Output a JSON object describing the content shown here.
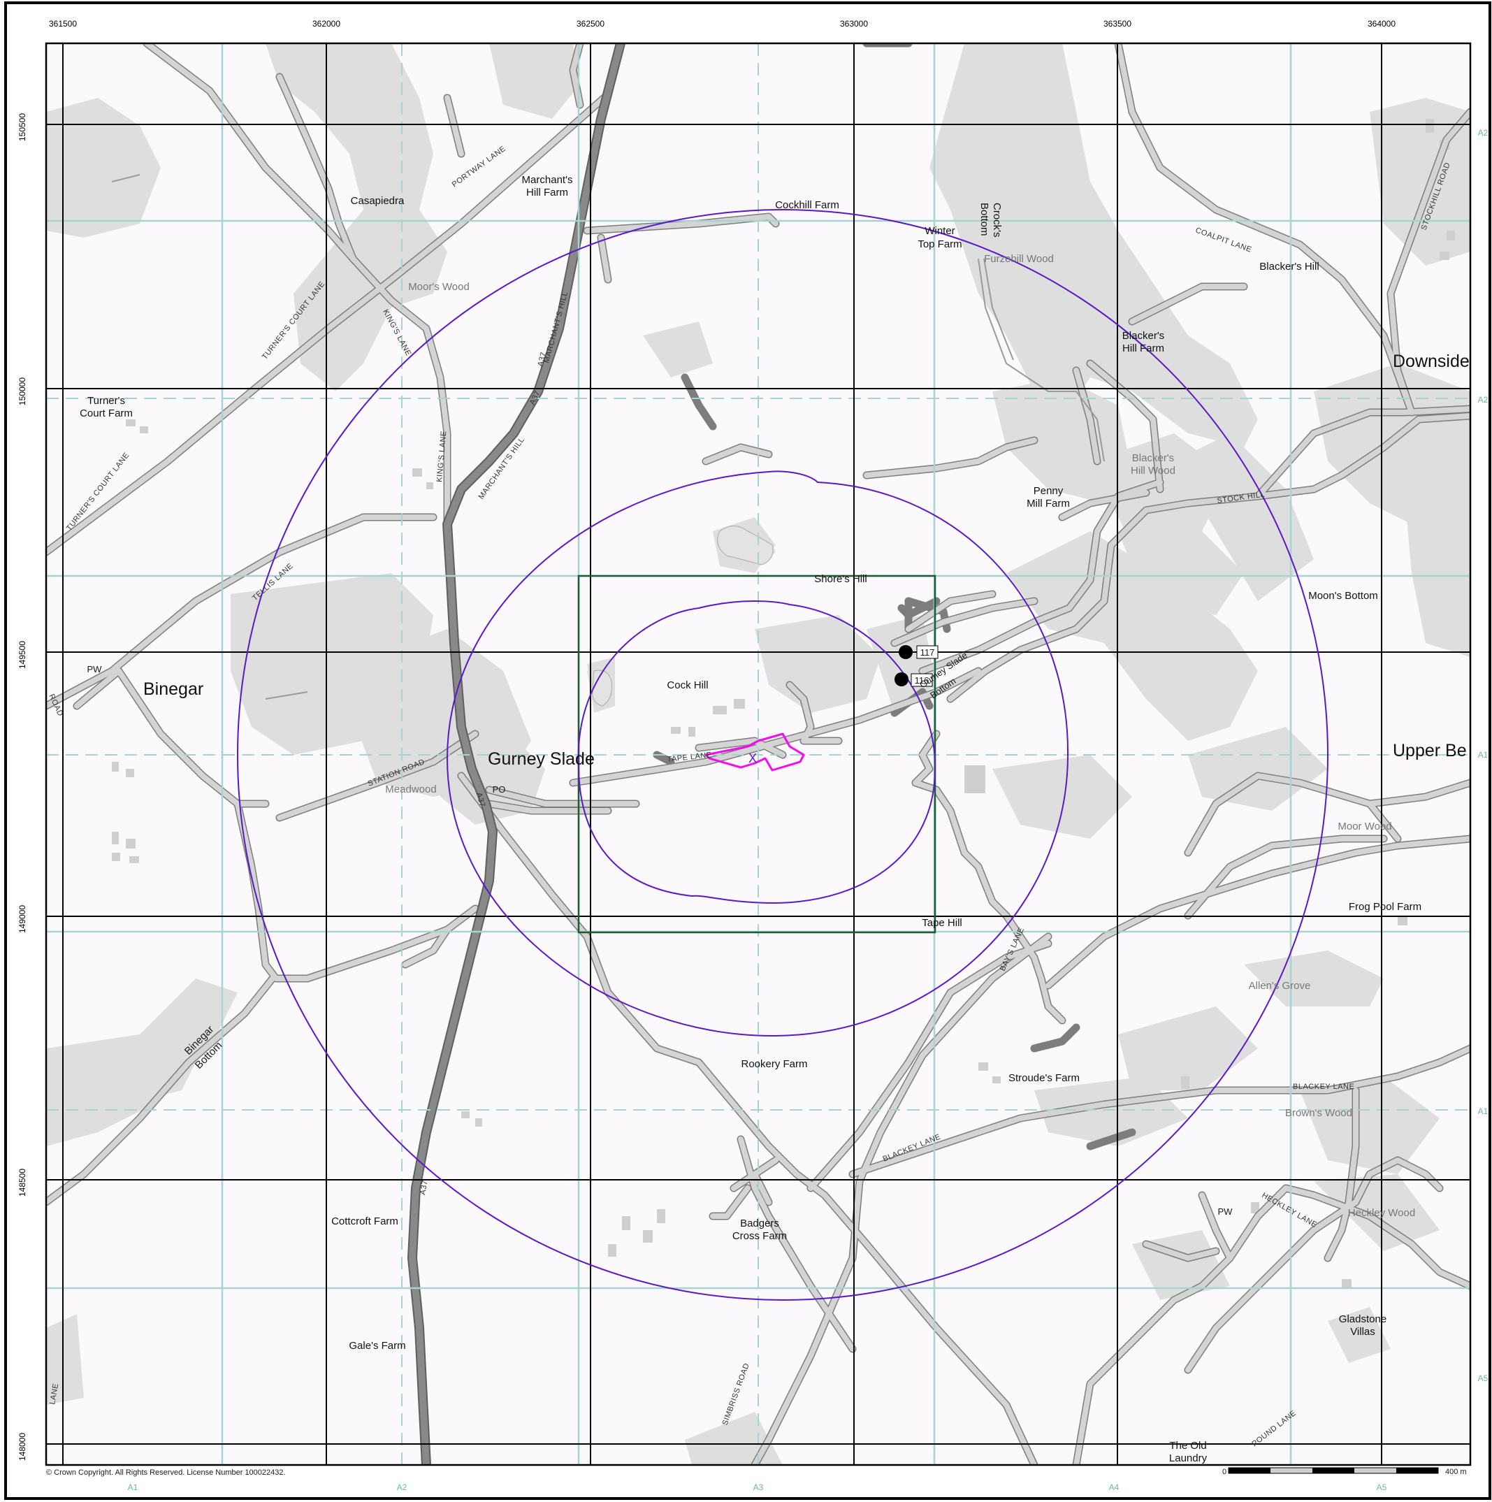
{
  "map": {
    "copyright": "© Crown Copyright. All Rights Reserved. License Number 100022432.",
    "scale_zero": "0",
    "scale_end": "400 m",
    "colors": {
      "background": "#fbf9fc",
      "woodland": "#dedede",
      "minor_road": "#d2d2d2",
      "a_road": "#878787",
      "road_casing": "#7d7d7d",
      "grid_black": "#000000",
      "grid_teal": "#a7d3d0",
      "buffer_circle": "#5a18c8",
      "site_outline": "#f20cf0",
      "study_square": "#1e5a32"
    },
    "eastings": [
      "361500",
      "362000",
      "362500",
      "363000",
      "363500",
      "364000"
    ],
    "northings": [
      "150500",
      "150000",
      "149500",
      "149000",
      "148500",
      "148000"
    ],
    "sheet_labels_bottom": [
      "A1",
      "A2",
      "A3",
      "A4",
      "A5"
    ],
    "sheet_labels_right": [
      "A2",
      "A2",
      "A1",
      "A1",
      "A5"
    ],
    "place_labels": {
      "binegar": "Binegar",
      "gurney_slade": "Gurney Slade",
      "downside": "Downside",
      "upper_be": "Upper Be",
      "casapiedra": "Casapiedra",
      "marchants_farm_1": "Marchant's",
      "marchants_farm_2": "Hill Farm",
      "cockhill_farm": "Cockhill Farm",
      "winter_top_1": "Winter",
      "winter_top_2": "Top Farm",
      "crocks_1": "Crock's",
      "crocks_2": "Bottom",
      "furzehill": "Furzehill Wood",
      "blackers_hill": "Blacker's Hill",
      "blackers_farm_1": "Blacker's",
      "blackers_farm_2": "Hill Farm",
      "turners_1": "Turner's",
      "turners_2": "Court Farm",
      "moors_wood": "Moor's Wood",
      "blackers_wood_1": "Blacker's",
      "blackers_wood_2": "Hill Wood",
      "penny_1": "Penny",
      "penny_2": "Mill Farm",
      "shores_hill": "Shore's Hill",
      "moons_bottom": "Moon's Bottom",
      "pw_1": "PW",
      "cock_hill": "Cock Hill",
      "gurney_bottom_1": "Gurney Slade",
      "gurney_bottom_2": "Bottom",
      "meadwood": "Meadwood",
      "po": "PO",
      "moor_wood": "Moor Wood",
      "frog_pool": "Frog Pool Farm",
      "tape_hill": "Tape Hill",
      "allens_grove": "Allen's Grove",
      "rookery": "Rookery Farm",
      "stroudes": "Stroude's Farm",
      "browns_wood": "Brown's Wood",
      "binegar_bottom_1": "Binegar",
      "binegar_bottom_2": "Bottom",
      "cottcroft": "Cottcroft Farm",
      "badgers_1": "Badgers",
      "badgers_2": "Cross Farm",
      "pw_2": "PW",
      "heckley_wood": "Heckley Wood",
      "gales": "Gale's Farm",
      "gladstone_1": "Gladstone",
      "gladstone_2": "Villas",
      "old_laundry_1": "The Old",
      "old_laundry_2": "Laundry"
    },
    "road_labels": {
      "portway": "PORTWAY LANE",
      "marchants_1": "MARCHANT'S HILL",
      "marchants_2": "MARCHANT'S HILL",
      "a37_1": "A37",
      "a37_2": "A37",
      "a37_3": "A37",
      "a37_4": "A37",
      "kings_1": "KING'S LANE",
      "kings_2": "KING'S LANE",
      "turners_court_1": "TURNER'S COURT LANE",
      "turners_court_2": "TURNER'S COURT LANE",
      "tellis": "TELLIS LANE",
      "station": "STATION ROAD",
      "tape": "TAPE LANE",
      "coalpit": "COALPIT LANE",
      "stockhill_road": "STOCKHILL ROAD",
      "stock_hill": "STOCK HILL",
      "bays": "BAY'S LANE",
      "blackey_1": "BLACKEY LANE",
      "blackey_2": "BLACKEY LANE",
      "heckley": "HECKLEY LANE",
      "simbriss": "SIMBRISS ROAD",
      "pound": "POUND LANE",
      "road_left": "ROAD",
      "lane_left": "LANE"
    },
    "markers": [
      {
        "id": "117",
        "label": "117"
      },
      {
        "id": "116",
        "label": "116"
      }
    ],
    "site_mark": "X"
  }
}
